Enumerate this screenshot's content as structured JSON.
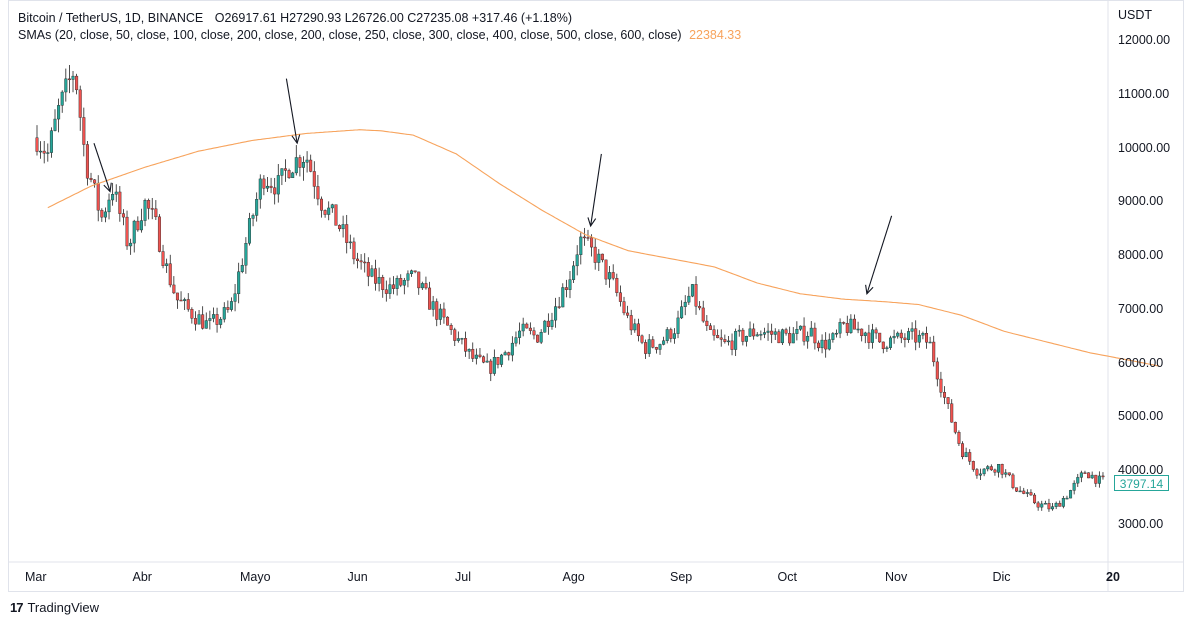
{
  "legend": {
    "symbol": "Bitcoin / TetherUS, 1D, BINANCE",
    "ohlc": "O26917.61  H27290.93  L26726.00  C27235.08  +317.46 (+1.18%)",
    "sma_label": "SMAs (20, close, 50, close, 100, close, 200, close, 200, close, 250, close, 300, close, 400, close, 500, close, 600, close)",
    "sma_value": "22384.33"
  },
  "price_scale": {
    "currency": "USDT",
    "labels": [
      "12000.00",
      "11000.00",
      "10000.00",
      "9000.00",
      "8000.00",
      "7000.00",
      "6000.00",
      "5000.00",
      "4000.00",
      "3000.00"
    ],
    "current_price": "3797.14"
  },
  "time_scale": {
    "labels": [
      "Mar",
      "Abr",
      "Mayo",
      "Jun",
      "Jul",
      "Ago",
      "Sep",
      "Oct",
      "Nov",
      "Dic",
      "20"
    ]
  },
  "branding": {
    "logo": "17",
    "name": "TradingView"
  },
  "colors": {
    "up": "#26a69a",
    "down": "#ef5350",
    "sma": "#f7a35c",
    "grid": "#e0e3eb",
    "arrow": "#131722"
  },
  "chart_data": {
    "type": "candlestick",
    "ylim": [
      2600,
      12400
    ],
    "y_ticks": [
      12000,
      11000,
      10000,
      9000,
      8000,
      7000,
      6000,
      5000,
      4000,
      3000
    ],
    "x_months": [
      "Mar",
      "Abr",
      "Mayo",
      "Jun",
      "Jul",
      "Ago",
      "Sep",
      "Oct",
      "Nov",
      "Dic",
      "20"
    ],
    "x_range": [
      0,
      10.72
    ],
    "close_path": [
      [
        0.0,
        10200
      ],
      [
        0.1,
        9900
      ],
      [
        0.2,
        10700
      ],
      [
        0.35,
        11500
      ],
      [
        0.45,
        9800
      ],
      [
        0.6,
        8700
      ],
      [
        0.7,
        9300
      ],
      [
        0.85,
        8200
      ],
      [
        1.0,
        9000
      ],
      [
        1.1,
        8600
      ],
      [
        1.2,
        7800
      ],
      [
        1.3,
        7200
      ],
      [
        1.4,
        7000
      ],
      [
        1.6,
        6700
      ],
      [
        1.8,
        7000
      ],
      [
        1.95,
        8300
      ],
      [
        2.1,
        9500
      ],
      [
        2.25,
        9300
      ],
      [
        2.35,
        9700
      ],
      [
        2.5,
        9900
      ],
      [
        2.65,
        9000
      ],
      [
        2.8,
        8600
      ],
      [
        2.95,
        8000
      ],
      [
        3.1,
        7600
      ],
      [
        3.3,
        7400
      ],
      [
        3.5,
        7600
      ],
      [
        3.7,
        7000
      ],
      [
        3.85,
        6600
      ],
      [
        4.05,
        6100
      ],
      [
        4.2,
        5900
      ],
      [
        4.35,
        6200
      ],
      [
        4.5,
        6600
      ],
      [
        4.65,
        6500
      ],
      [
        4.8,
        7000
      ],
      [
        4.95,
        7600
      ],
      [
        5.05,
        8300
      ],
      [
        5.2,
        8000
      ],
      [
        5.35,
        7500
      ],
      [
        5.5,
        6800
      ],
      [
        5.65,
        6300
      ],
      [
        5.8,
        6400
      ],
      [
        5.95,
        6700
      ],
      [
        6.05,
        7200
      ],
      [
        6.1,
        7300
      ],
      [
        6.25,
        6500
      ],
      [
        6.4,
        6350
      ],
      [
        6.55,
        6500
      ],
      [
        6.7,
        6600
      ],
      [
        6.85,
        6550
      ],
      [
        7.0,
        6500
      ],
      [
        7.2,
        6600
      ],
      [
        7.3,
        6350
      ],
      [
        7.42,
        6450
      ],
      [
        7.5,
        6700
      ],
      [
        7.7,
        6600
      ],
      [
        7.85,
        6400
      ],
      [
        8.0,
        6450
      ],
      [
        8.15,
        6500
      ],
      [
        8.3,
        6400
      ],
      [
        8.45,
        5300
      ],
      [
        8.6,
        4400
      ],
      [
        8.75,
        4000
      ],
      [
        8.95,
        4100
      ],
      [
        9.1,
        3700
      ],
      [
        9.3,
        3400
      ],
      [
        9.45,
        3300
      ],
      [
        9.6,
        3600
      ],
      [
        9.75,
        4000
      ],
      [
        9.9,
        3800
      ],
      [
        10.05,
        3900
      ],
      [
        10.2,
        3900
      ],
      [
        10.35,
        3800
      ]
    ],
    "sma_path": [
      [
        0.0,
        8800
      ],
      [
        0.5,
        9300
      ],
      [
        1.0,
        9650
      ],
      [
        1.5,
        9950
      ],
      [
        2.0,
        10150
      ],
      [
        2.5,
        10280
      ],
      [
        3.0,
        10350
      ],
      [
        3.2,
        10330
      ],
      [
        3.5,
        10250
      ],
      [
        3.9,
        9900
      ],
      [
        4.3,
        9350
      ],
      [
        4.7,
        8850
      ],
      [
        5.1,
        8400
      ],
      [
        5.5,
        8100
      ],
      [
        5.9,
        7950
      ],
      [
        6.3,
        7800
      ],
      [
        6.7,
        7500
      ],
      [
        7.1,
        7300
      ],
      [
        7.5,
        7200
      ],
      [
        7.9,
        7150
      ],
      [
        8.2,
        7100
      ],
      [
        8.6,
        6900
      ],
      [
        9.0,
        6600
      ],
      [
        9.4,
        6400
      ],
      [
        9.8,
        6200
      ],
      [
        10.2,
        6050
      ],
      [
        10.45,
        5950
      ]
    ],
    "annotation_arrows": [
      {
        "from": [
          0.53,
          10100
        ],
        "to": [
          0.68,
          9200
        ]
      },
      {
        "from": [
          2.32,
          11300
        ],
        "to": [
          2.42,
          10100
        ]
      },
      {
        "from": [
          5.25,
          9900
        ],
        "to": [
          5.15,
          8560
        ]
      },
      {
        "from": [
          7.95,
          8750
        ],
        "to": [
          7.72,
          7300
        ]
      }
    ]
  }
}
